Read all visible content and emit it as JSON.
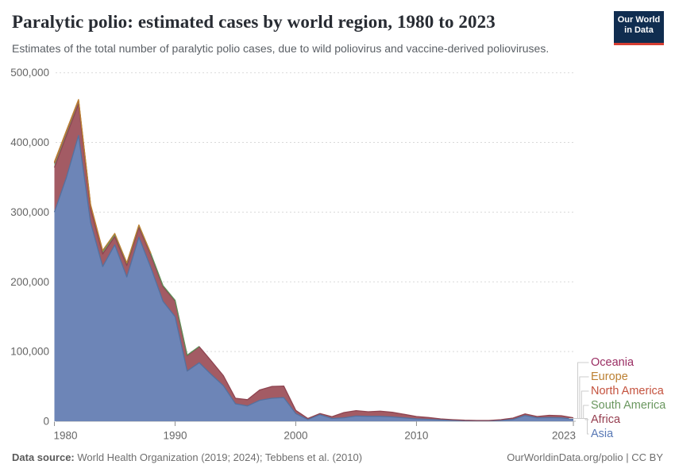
{
  "header": {
    "title": "Paralytic polio: estimated cases by world region, 1980 to 2023",
    "subtitle": "Estimates of the total number of paralytic polio cases, due to wild poliovirus and vaccine-derived polioviruses."
  },
  "logo": {
    "line1": "Our World",
    "line2": "in Data",
    "bg_color": "#102d50",
    "accent_color": "#d63d32"
  },
  "chart_data": {
    "type": "area",
    "stacked": true,
    "title": "Paralytic polio: estimated cases by world region, 1980 to 2023",
    "xlabel": "",
    "ylabel": "",
    "xlim": [
      1980,
      2023
    ],
    "ylim": [
      0,
      500000
    ],
    "grid": true,
    "legend_position": "right",
    "x": [
      1980,
      1981,
      1982,
      1983,
      1984,
      1985,
      1986,
      1987,
      1988,
      1989,
      1990,
      1991,
      1992,
      1993,
      1994,
      1995,
      1996,
      1997,
      1998,
      1999,
      2000,
      2001,
      2002,
      2003,
      2004,
      2005,
      2006,
      2007,
      2008,
      2009,
      2010,
      2011,
      2012,
      2013,
      2014,
      2015,
      2016,
      2017,
      2018,
      2019,
      2020,
      2021,
      2022,
      2023
    ],
    "series": [
      {
        "name": "Asia",
        "color": "#54719f",
        "fill": "#6d85b7",
        "values": [
          300000,
          350000,
          410000,
          285000,
          222000,
          253000,
          207000,
          264000,
          220000,
          172000,
          150000,
          72000,
          84000,
          67000,
          51000,
          25000,
          22000,
          30000,
          33000,
          34000,
          11000,
          2500,
          9500,
          4000,
          5000,
          7500,
          7000,
          7000,
          6300,
          4900,
          3400,
          2700,
          1900,
          1400,
          900,
          700,
          700,
          1300,
          2600,
          8200,
          4900,
          5300,
          4900,
          3100
        ]
      },
      {
        "name": "Africa",
        "color": "#8e4450",
        "fill": "#a35b64",
        "values": [
          64000,
          60000,
          45000,
          20000,
          18000,
          12000,
          16500,
          14000,
          18000,
          21000,
          22500,
          22000,
          23000,
          19500,
          14500,
          8000,
          9000,
          14800,
          16800,
          16500,
          4600,
          1500,
          1500,
          2500,
          7500,
          7700,
          6700,
          7400,
          6600,
          5000,
          3400,
          2600,
          1500,
          900,
          600,
          400,
          400,
          1000,
          2000,
          2400,
          1900,
          3200,
          3100,
          1900
        ]
      },
      {
        "name": "South America",
        "color": "#5f8f57",
        "fill": "#7ba36f",
        "values": [
          6000,
          5500,
          5000,
          4500,
          4000,
          3500,
          3000,
          3000,
          2000,
          1500,
          1000,
          800,
          500,
          300,
          200,
          100,
          100,
          100,
          100,
          50,
          50,
          50,
          50,
          30,
          20,
          20,
          20,
          10,
          10,
          10,
          10,
          10,
          5,
          5,
          5,
          5,
          5,
          5,
          5,
          5,
          5,
          5,
          5,
          5
        ]
      },
      {
        "name": "North America",
        "color": "#c4523e",
        "fill": "#d07a62",
        "values": [
          700,
          600,
          500,
          450,
          400,
          350,
          300,
          250,
          200,
          150,
          100,
          80,
          50,
          30,
          20,
          10,
          10,
          10,
          5,
          5,
          5,
          5,
          5,
          2,
          2,
          2,
          2,
          2,
          2,
          2,
          2,
          2,
          1,
          1,
          1,
          1,
          1,
          1,
          1,
          1,
          1,
          1,
          1,
          1
        ]
      },
      {
        "name": "Europe",
        "color": "#bc8033",
        "fill": "#cfa05e",
        "values": [
          1500,
          1300,
          1100,
          950,
          800,
          700,
          600,
          500,
          400,
          300,
          250,
          200,
          150,
          100,
          80,
          50,
          40,
          30,
          20,
          10,
          10,
          10,
          10,
          5,
          5,
          5,
          5,
          5,
          5,
          5,
          5,
          5,
          2,
          2,
          2,
          2,
          2,
          2,
          2,
          2,
          2,
          2,
          2,
          2
        ]
      },
      {
        "name": "Oceania",
        "color": "#9a2e63",
        "fill": "#b45f8b",
        "values": [
          150,
          130,
          110,
          90,
          80,
          70,
          60,
          50,
          40,
          30,
          25,
          20,
          15,
          10,
          8,
          5,
          5,
          5,
          5,
          2,
          2,
          2,
          2,
          2,
          2,
          2,
          2,
          1,
          1,
          1,
          1,
          1,
          1,
          1,
          1,
          1,
          1,
          1,
          1,
          1,
          1,
          1,
          1,
          1
        ]
      }
    ],
    "y_ticks": [
      {
        "value": 0,
        "label": "0"
      },
      {
        "value": 100000,
        "label": "100,000"
      },
      {
        "value": 200000,
        "label": "200,000"
      },
      {
        "value": 300000,
        "label": "300,000"
      },
      {
        "value": 400000,
        "label": "400,000"
      },
      {
        "value": 500000,
        "label": "500,000"
      }
    ],
    "x_ticks": [
      {
        "year": 1980,
        "label": "1980",
        "align": "start"
      },
      {
        "year": 1990,
        "label": "1990",
        "align": "middle"
      },
      {
        "year": 2000,
        "label": "2000",
        "align": "middle"
      },
      {
        "year": 2010,
        "label": "2010",
        "align": "middle"
      },
      {
        "year": 2023,
        "label": "2023",
        "align": "end"
      }
    ]
  },
  "legend": {
    "items": [
      {
        "label": "Oceania",
        "color": "#9a2e63"
      },
      {
        "label": "Europe",
        "color": "#bc8033"
      },
      {
        "label": "North America",
        "color": "#c4523e"
      },
      {
        "label": "South America",
        "color": "#6a975f"
      },
      {
        "label": "Africa",
        "color": "#953d4f"
      },
      {
        "label": "Asia",
        "color": "#5878b5"
      }
    ]
  },
  "footer": {
    "source_label": "Data source:",
    "source_text": " World Health Organization (2019; 2024); Tebbens et al. (2010)",
    "right": "OurWorldinData.org/polio | CC BY"
  },
  "colors": {
    "grid": "#d9d9d9",
    "zero_axis": "#b0b0b0",
    "tick": "#8f8f8f",
    "tick_text": "#666666",
    "connector": "#cccccc"
  }
}
